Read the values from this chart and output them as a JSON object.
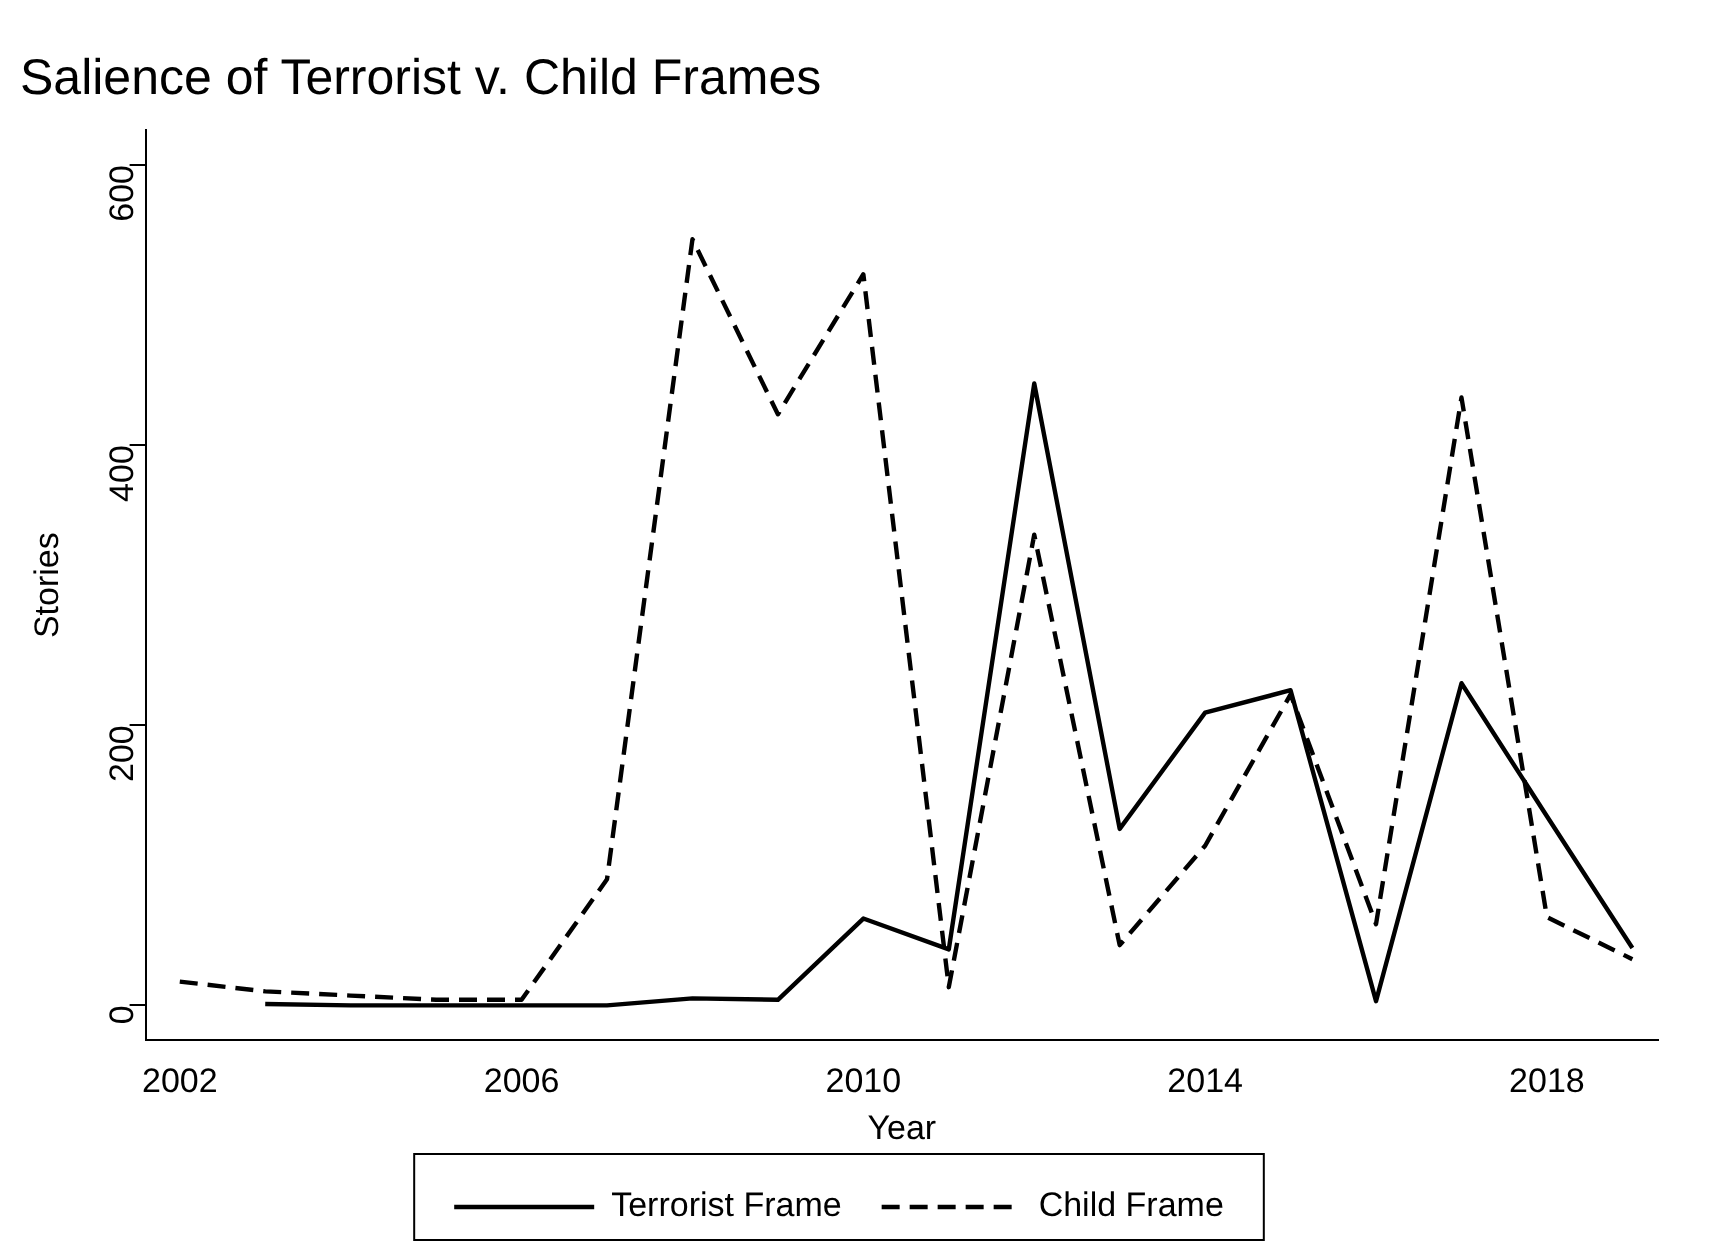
{
  "chart_data": {
    "type": "line",
    "title": "Salience of Terrorist v. Child Frames",
    "xlabel": "Year",
    "ylabel": "Stories",
    "x": [
      2002,
      2003,
      2004,
      2005,
      2006,
      2007,
      2008,
      2009,
      2010,
      2011,
      2012,
      2013,
      2014,
      2015,
      2016,
      2017,
      2018,
      2019
    ],
    "xlim": [
      2001.6,
      2019.3
    ],
    "xticks": [
      2002,
      2006,
      2010,
      2014,
      2018
    ],
    "ylim": [
      -25,
      625
    ],
    "yticks": [
      0,
      200,
      400,
      600
    ],
    "series": [
      {
        "name": "Terrorist Frame",
        "color": "#000000",
        "line_style": "solid",
        "values": [
          null,
          1,
          0,
          0,
          0,
          0,
          5,
          4,
          62,
          40,
          444,
          126,
          209,
          225,
          3,
          230,
          135,
          41
        ]
      },
      {
        "name": "Child Frame",
        "color": "#000000",
        "line_style": "dashed",
        "values": [
          17,
          10,
          7,
          4,
          4,
          90,
          547,
          422,
          522,
          13,
          336,
          43,
          114,
          222,
          58,
          434,
          63,
          33
        ]
      }
    ],
    "grid": false,
    "legend": "bottom",
    "marker": "none"
  }
}
